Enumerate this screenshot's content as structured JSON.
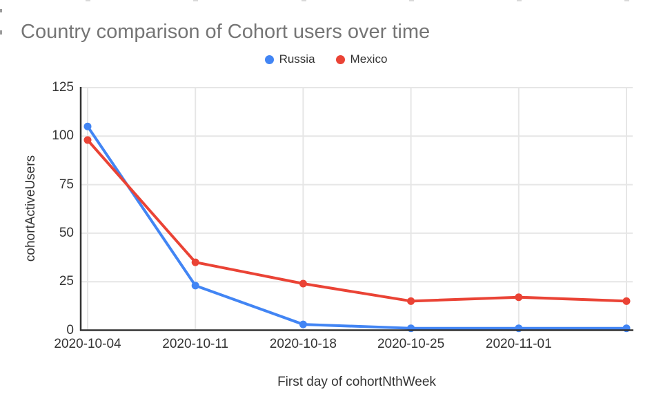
{
  "chart_data": {
    "type": "line",
    "title": "Country comparison of Cohort users over time",
    "xlabel": "First day of cohortNthWeek",
    "ylabel": "cohortActiveUsers",
    "categories": [
      "2020-10-04",
      "2020-10-11",
      "2020-10-18",
      "2020-10-25",
      "2020-11-01",
      ""
    ],
    "series": [
      {
        "name": "Russia",
        "color": "#4285F4",
        "values": [
          105,
          23,
          3,
          1,
          1,
          1
        ]
      },
      {
        "name": "Mexico",
        "color": "#EA4335",
        "values": [
          98,
          35,
          24,
          15,
          17,
          15
        ]
      }
    ],
    "ylim": [
      0,
      125
    ],
    "yticks": [
      0,
      25,
      50,
      75,
      100,
      125
    ],
    "grid": true,
    "legend_position": "top",
    "marker": "circle-icon",
    "colors": {
      "title_text": "#757575",
      "axis_text": "#333333",
      "gridline": "#e6e6e6",
      "axis_line": "#333333",
      "background": "#ffffff"
    }
  }
}
